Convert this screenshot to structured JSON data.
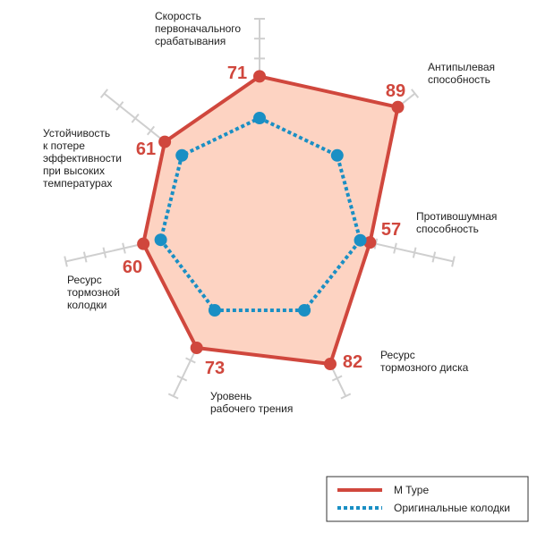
{
  "chart_data": {
    "type": "radar",
    "categories": [
      [
        "Скорость",
        "первоначального",
        "срабатывания"
      ],
      [
        "Антипылевая",
        "способность"
      ],
      [
        "Противошумная",
        "способность"
      ],
      [
        "Ресурс",
        "тормозного диска"
      ],
      [
        "Уровень",
        "рабочего трения"
      ],
      [
        "Ресурс",
        "тормозной",
        "колодки"
      ],
      [
        "Устойчивость",
        "к потере",
        "эффективности",
        "при высоких",
        "температурах"
      ]
    ],
    "rlim": [
      0,
      100
    ],
    "rticks": [
      10,
      20,
      30,
      40,
      50,
      60,
      70,
      80,
      90,
      100
    ],
    "series": [
      {
        "name": "M Type",
        "color": "#d0473d",
        "fill": "#fdd3c2",
        "values": [
          71,
          89,
          57,
          82,
          73,
          60,
          61
        ],
        "show_values": true
      },
      {
        "name": "Оригинальные колодки",
        "color": "#1a8fc4",
        "values": [
          50,
          50,
          52,
          52,
          52,
          51,
          50
        ],
        "dotted": true
      }
    ],
    "legend": "bottom-right"
  }
}
